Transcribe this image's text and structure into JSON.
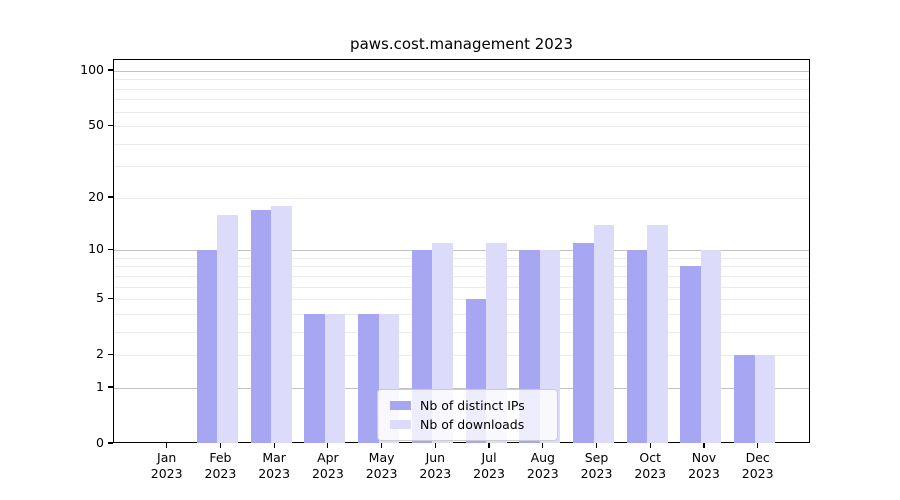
{
  "title": "paws.cost.management 2023",
  "chart_data": {
    "type": "bar",
    "title": "paws.cost.management 2023",
    "categories": [
      "Jan 2023",
      "Feb 2023",
      "Mar 2023",
      "Apr 2023",
      "May 2023",
      "Jun 2023",
      "Jul 2023",
      "Aug 2023",
      "Sep 2023",
      "Oct 2023",
      "Nov 2023",
      "Dec 2023"
    ],
    "series": [
      {
        "name": "Nb of distinct IPs",
        "color": "#a6a6f3",
        "values": [
          0,
          10,
          17,
          4,
          4,
          10,
          5,
          10,
          11,
          10,
          8,
          2
        ]
      },
      {
        "name": "Nb of downloads",
        "color": "#dcdcfa",
        "values": [
          0,
          16,
          18,
          4,
          4,
          11,
          11,
          10,
          14,
          14,
          10,
          2
        ]
      }
    ],
    "xlabel": "",
    "ylabel": "",
    "y_axis": {
      "scale": "log1p",
      "tick_values": [
        0,
        1,
        2,
        5,
        10,
        20,
        50,
        100
      ],
      "tick_labels": [
        "0",
        "1",
        "2",
        "5",
        "10",
        "20",
        "50",
        "100"
      ],
      "major_gridlines": [
        1,
        10,
        100
      ],
      "minor_gridlines": [
        2,
        3,
        4,
        5,
        6,
        7,
        8,
        9,
        20,
        30,
        40,
        50,
        60,
        70,
        80,
        90
      ],
      "ylim": [
        0,
        115
      ]
    },
    "legend_position": "lower center",
    "grid": true
  },
  "colors": {
    "major_grid": "#c2c2c2",
    "minor_grid": "#ebebeb",
    "spine": "#000000",
    "background": "#ffffff",
    "legend_border": "#cccccc"
  }
}
